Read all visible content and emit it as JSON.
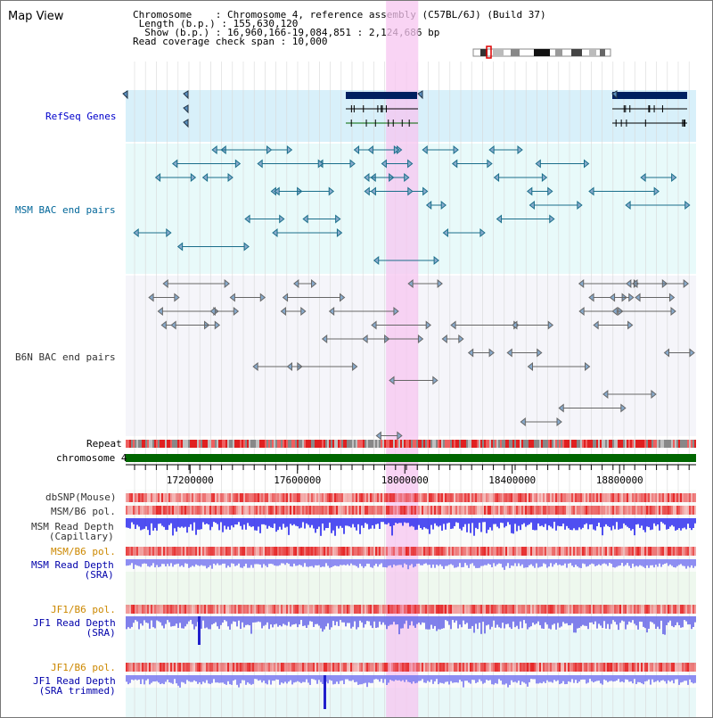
{
  "header": {
    "title": "Map View",
    "info_lines": [
      "Chromosome    : Chromosome 4, reference assembly (C57BL/6J) (Build 37)",
      " Length (b.p.) : 155,630,120",
      "  Show (b.p.) : 16,960,166-19,084,851 : 2,124,686 bp",
      "Read coverage check span : 10,000"
    ]
  },
  "tracks": {
    "refseq": "RefSeq Genes",
    "msm_bac": "MSM BAC end pairs",
    "b6n_bac": "B6N BAC end pairs",
    "repeat": "Repeat",
    "chromosome": "chromosome 4",
    "dbsnp": "dbSNP(Mouse)",
    "msm_b6_pol_1": "MSM/B6 pol.",
    "msm_depth_cap": "MSM Read Depth\n(Capillary)",
    "msm_b6_pol_2": "MSM/B6 pol.",
    "msm_depth_sra": "MSM Read Depth\n(SRA)",
    "jf1_b6_pol_1": "JF1/B6 pol.",
    "jf1_depth_sra": "JF1 Read Depth\n(SRA)",
    "jf1_b6_pol_2": "JF1/B6 pol.",
    "jf1_depth_trim": "JF1 Read Depth\n(SRA trimmed)"
  },
  "axis": {
    "start": 16960166,
    "end": 19084851,
    "ticks": [
      {
        "label": "17200000",
        "value": 17200000
      },
      {
        "label": "17600000",
        "value": 17600000
      },
      {
        "label": "18000000",
        "value": 18000000
      },
      {
        "label": "18400000",
        "value": 18400000
      },
      {
        "label": "18800000",
        "value": 18800000
      }
    ]
  },
  "highlight": {
    "start": 17930000,
    "end": 18050000
  },
  "colors": {
    "refseq_bg": "#d8f0fa",
    "msm_bg": "#e8fafa",
    "b6n_bg": "#f5f5fa",
    "refseq_label": "#0000cc",
    "msm_label": "#006699",
    "b6n_label": "#333333",
    "pol_label": "#cc8800",
    "sra_label": "#0000aa",
    "highlight": "#f7c6f0",
    "chromosome": "#006600",
    "depth": "#5050e8"
  }
}
